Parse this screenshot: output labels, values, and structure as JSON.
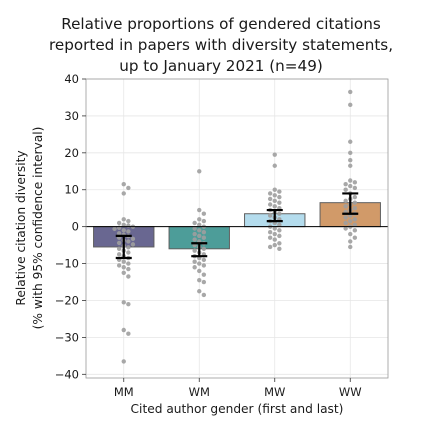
{
  "chart_data": {
    "type": "bar",
    "title_lines": [
      "Relative proportions of gendered citations",
      "reported in papers with diversity statements,",
      "up to January 2021 (n=49)"
    ],
    "xlabel": "Cited author gender (first and last)",
    "ylabel_lines": [
      "Relative citation diversity",
      "(% with 95% confidence interval)"
    ],
    "categories": [
      "MM",
      "WM",
      "MW",
      "WW"
    ],
    "values": [
      -5.5,
      -6.0,
      3.5,
      6.5
    ],
    "ci": [
      [
        -8.5,
        -2.5
      ],
      [
        -8.0,
        -4.5
      ],
      [
        1.5,
        4.5
      ],
      [
        3.5,
        9.0
      ]
    ],
    "bar_colors": [
      "#4f4d7e",
      "#2e8c88",
      "#a8d7ea",
      "#c9894f"
    ],
    "ylim": [
      -41,
      40
    ],
    "yticks": [
      -40,
      -30,
      -20,
      -10,
      0,
      10,
      20,
      30,
      40
    ],
    "ytick_labels": [
      "−40",
      "−30",
      "−20",
      "−10",
      "0",
      "10",
      "20",
      "30",
      "40"
    ],
    "grid": true,
    "points": [
      [
        11.5,
        10.5,
        9.0,
        2.0,
        1.5,
        1.0,
        0.5,
        0.3,
        0.0,
        -0.3,
        -0.6,
        -1.0,
        -1.3,
        -1.8,
        -2.2,
        -2.6,
        -3.0,
        -3.3,
        -3.7,
        -4.0,
        -4.4,
        -4.8,
        -5.2,
        -5.6,
        -6.0,
        -6.5,
        -7.0,
        -7.5,
        -8.0,
        -8.5,
        -9.0,
        -9.5,
        -10.0,
        -10.5,
        -11.0,
        -11.5,
        -12.5,
        -13.5,
        -20.5,
        -21.0,
        -28.0,
        -29.0,
        -36.5
      ],
      [
        15.0,
        4.5,
        3.5,
        2.0,
        1.5,
        1.0,
        0.5,
        0.0,
        -0.5,
        -1.0,
        -1.5,
        -2.0,
        -2.5,
        -3.0,
        -3.5,
        -4.0,
        -4.5,
        -5.0,
        -5.5,
        -6.0,
        -6.5,
        -7.0,
        -7.5,
        -8.0,
        -8.5,
        -9.0,
        -9.5,
        -10.0,
        -10.5,
        -11.0,
        -12.0,
        -13.0,
        -14.5,
        -15.0,
        -17.5,
        -18.5
      ],
      [
        19.5,
        16.5,
        10.0,
        9.5,
        9.0,
        8.5,
        8.0,
        7.5,
        7.0,
        6.5,
        6.0,
        5.5,
        5.0,
        4.5,
        4.0,
        3.5,
        3.0,
        2.5,
        2.0,
        1.5,
        1.0,
        0.5,
        0.0,
        -0.5,
        -1.0,
        -1.5,
        -2.0,
        -2.5,
        -3.0,
        -3.5,
        -4.5,
        -5.0,
        -5.5,
        -6.0
      ],
      [
        36.5,
        33.0,
        23.0,
        20.0,
        18.0,
        16.5,
        12.5,
        12.0,
        11.5,
        11.0,
        10.5,
        10.0,
        9.0,
        8.0,
        7.5,
        7.0,
        6.5,
        6.0,
        5.5,
        5.0,
        4.5,
        4.0,
        3.5,
        3.0,
        2.5,
        2.0,
        1.5,
        1.0,
        0.5,
        0.0,
        -0.5,
        -1.0,
        -2.0,
        -3.0,
        -4.0,
        -5.5
      ]
    ]
  }
}
